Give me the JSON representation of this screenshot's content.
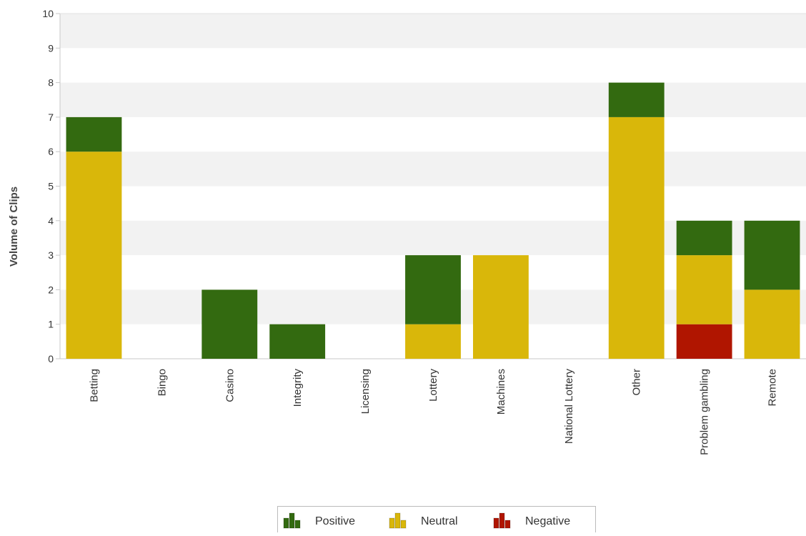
{
  "chart_data": {
    "type": "bar",
    "stacked": true,
    "title": "",
    "xlabel": "",
    "ylabel": "Volume of Clips",
    "ylim": [
      0,
      10
    ],
    "yticks": [
      0,
      1,
      2,
      3,
      4,
      5,
      6,
      7,
      8,
      9,
      10
    ],
    "grid": "alternating horizontal bands",
    "legend_position": "bottom-center",
    "categories": [
      "Betting",
      "Bingo",
      "Casino",
      "Integrity",
      "Licensing",
      "Lottery",
      "Machines",
      "National Lottery",
      "Other",
      "Problem gambling",
      "Remote"
    ],
    "series": [
      {
        "name": "Negative",
        "color": "#b01500",
        "values": [
          0,
          0,
          0,
          0,
          0,
          0,
          0,
          0,
          0,
          1,
          0
        ]
      },
      {
        "name": "Neutral",
        "color": "#d9b70a",
        "values": [
          6,
          0,
          0,
          0,
          0,
          1,
          3,
          0,
          7,
          2,
          2
        ]
      },
      {
        "name": "Positive",
        "color": "#336a10",
        "values": [
          1,
          0,
          2,
          1,
          0,
          2,
          0,
          0,
          1,
          1,
          2
        ]
      }
    ],
    "legend": [
      {
        "name": "Positive",
        "color": "#336a10",
        "icon": "bar-chart-icon"
      },
      {
        "name": "Neutral",
        "color": "#d9b70a",
        "icon": "bar-chart-icon"
      },
      {
        "name": "Negative",
        "color": "#b01500",
        "icon": "bar-chart-icon"
      }
    ]
  }
}
